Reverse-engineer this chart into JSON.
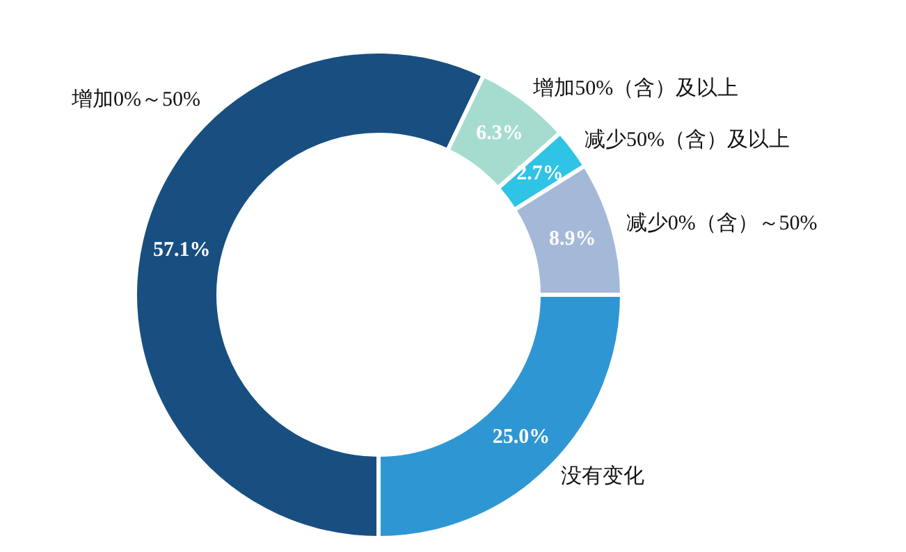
{
  "chart_data": {
    "type": "donut",
    "categories": [
      "增加0%～50%",
      "增加50%（含）及以上",
      "减少50%（含）及以上",
      "减少0%（含）～50%",
      "没有变化"
    ],
    "values": [
      57.1,
      6.3,
      2.7,
      8.9,
      25.0
    ],
    "colors": [
      "#184f80",
      "#a6dccf",
      "#2fc3e6",
      "#a4b9d8",
      "#2f96d4"
    ],
    "value_labels": [
      "57.1%",
      "6.3%",
      "2.7%",
      "8.9%",
      "25.0%"
    ]
  }
}
